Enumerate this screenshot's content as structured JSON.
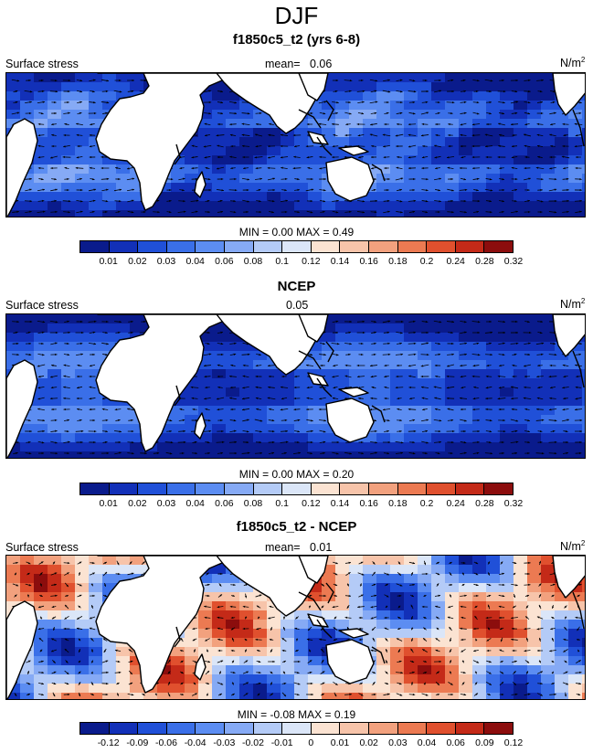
{
  "title": "DJF",
  "colors": {
    "seq": [
      "#0a1b8c",
      "#1230b8",
      "#2050d8",
      "#3a6fe8",
      "#5c8df2",
      "#86aaf5",
      "#b4cbf7",
      "#dbe6f8",
      "#fbe3d2",
      "#f7c4aa",
      "#f2a17e",
      "#ec7a52",
      "#e0502e",
      "#c42a18",
      "#8c0d0d"
    ],
    "diff": [
      "#0a1b8c",
      "#1230b8",
      "#2050d8",
      "#3a6fe8",
      "#5c8df2",
      "#86aaf5",
      "#b4cbf7",
      "#dbe6f8",
      "#fbe3d2",
      "#f7c4aa",
      "#f2a17e",
      "#ec7a52",
      "#e0502e",
      "#c42a18",
      "#8c0d0d"
    ],
    "land": "#ffffff"
  },
  "panels": [
    {
      "title": "f1850c5_t2 (yrs 6-8)",
      "left_label": "Surface stress",
      "mean_label": "mean=",
      "mean_value": "0.06",
      "units_base": "N/m",
      "units_exp": "2",
      "min_label": "MIN =",
      "min_value": "0.00",
      "max_label": "MAX =",
      "max_value": "0.49",
      "ticks": [
        "0.01",
        "0.02",
        "0.03",
        "0.04",
        "0.06",
        "0.08",
        "0.1",
        "0.12",
        "0.14",
        "0.16",
        "0.18",
        "0.2",
        "0.24",
        "0.28",
        "0.32"
      ]
    },
    {
      "title": "NCEP",
      "left_label": "Surface stress",
      "mean_label": "",
      "mean_value": "0.05",
      "units_base": "N/m",
      "units_exp": "2",
      "min_label": "MIN =",
      "min_value": "0.00",
      "max_label": "MAX =",
      "max_value": "0.20",
      "ticks": [
        "0.01",
        "0.02",
        "0.03",
        "0.04",
        "0.06",
        "0.08",
        "0.1",
        "0.12",
        "0.14",
        "0.16",
        "0.18",
        "0.2",
        "0.24",
        "0.28",
        "0.32"
      ]
    },
    {
      "title": "f1850c5_t2 - NCEP",
      "left_label": "Surface stress",
      "mean_label": "mean=",
      "mean_value": "0.01",
      "units_base": "N/m",
      "units_exp": "2",
      "min_label": "MIN =",
      "min_value": "-0.08",
      "max_label": "MAX =",
      "max_value": "0.19",
      "ticks": [
        "-0.12",
        "-0.09",
        "-0.06",
        "-0.04",
        "-0.03",
        "-0.02",
        "-0.01",
        "0",
        "0.01",
        "0.02",
        "0.03",
        "0.04",
        "0.06",
        "0.09",
        "0.12"
      ]
    }
  ],
  "chart_data": [
    {
      "type": "heatmap",
      "title": "f1850c5_t2 (yrs 6-8)",
      "variable": "Surface stress",
      "units": "N/m2",
      "mean": 0.06,
      "min": 0.0,
      "max": 0.49,
      "levels": [
        0.01,
        0.02,
        0.03,
        0.04,
        0.06,
        0.08,
        0.1,
        0.12,
        0.14,
        0.16,
        0.18,
        0.2,
        0.24,
        0.28,
        0.32
      ]
    },
    {
      "type": "heatmap",
      "title": "NCEP",
      "variable": "Surface stress",
      "units": "N/m2",
      "mean": 0.05,
      "min": 0.0,
      "max": 0.2,
      "levels": [
        0.01,
        0.02,
        0.03,
        0.04,
        0.06,
        0.08,
        0.1,
        0.12,
        0.14,
        0.16,
        0.18,
        0.2,
        0.24,
        0.28,
        0.32
      ]
    },
    {
      "type": "heatmap",
      "title": "f1850c5_t2 - NCEP",
      "variable": "Surface stress",
      "units": "N/m2",
      "mean": 0.01,
      "min": -0.08,
      "max": 0.19,
      "levels": [
        -0.12,
        -0.09,
        -0.06,
        -0.04,
        -0.03,
        -0.02,
        -0.01,
        0,
        0.01,
        0.02,
        0.03,
        0.04,
        0.06,
        0.09,
        0.12
      ]
    }
  ]
}
